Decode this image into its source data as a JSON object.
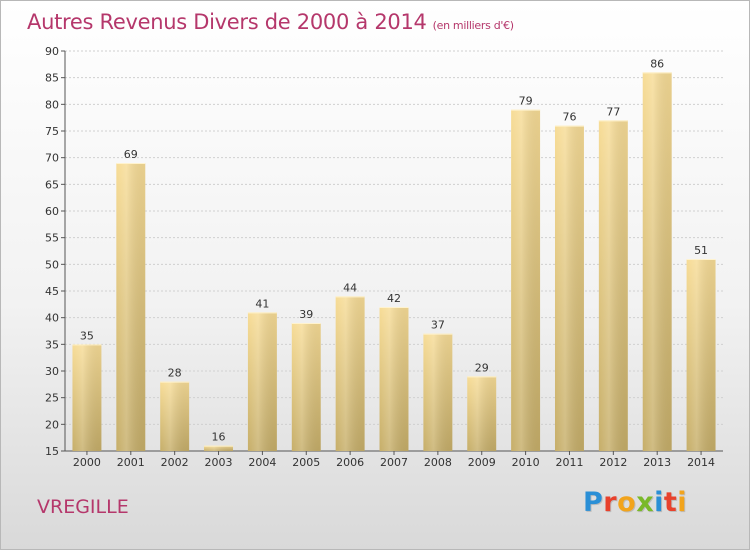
{
  "header": {
    "title": "Autres Revenus Divers de 2000 à 2014",
    "unit": "(en milliers d'€)"
  },
  "footer": {
    "place": "VREGILLE",
    "logo_letters": [
      {
        "ch": "P",
        "color": "#2a8fd6"
      },
      {
        "ch": "r",
        "color": "#e8412c"
      },
      {
        "ch": "o",
        "color": "#f2a41c"
      },
      {
        "ch": "x",
        "color": "#7ab929"
      },
      {
        "ch": "i",
        "color": "#2a8fd6"
      },
      {
        "ch": "t",
        "color": "#e8412c"
      },
      {
        "ch": "i",
        "color": "#f2a41c"
      }
    ]
  },
  "colors": {
    "title": "#b5376b",
    "bar_top": "#f7dc96",
    "bar_bottom": "#c6ae69",
    "grid": "#d0d0d0"
  },
  "chart_data": {
    "type": "bar",
    "categories": [
      "2000",
      "2001",
      "2002",
      "2003",
      "2004",
      "2005",
      "2006",
      "2007",
      "2008",
      "2009",
      "2010",
      "2011",
      "2012",
      "2013",
      "2014"
    ],
    "values": [
      35,
      69,
      28,
      16,
      41,
      39,
      44,
      42,
      37,
      29,
      79,
      76,
      77,
      86,
      51
    ],
    "ylim": [
      15,
      90
    ],
    "ytick_step": 5,
    "grid": true,
    "data_labels": true
  }
}
